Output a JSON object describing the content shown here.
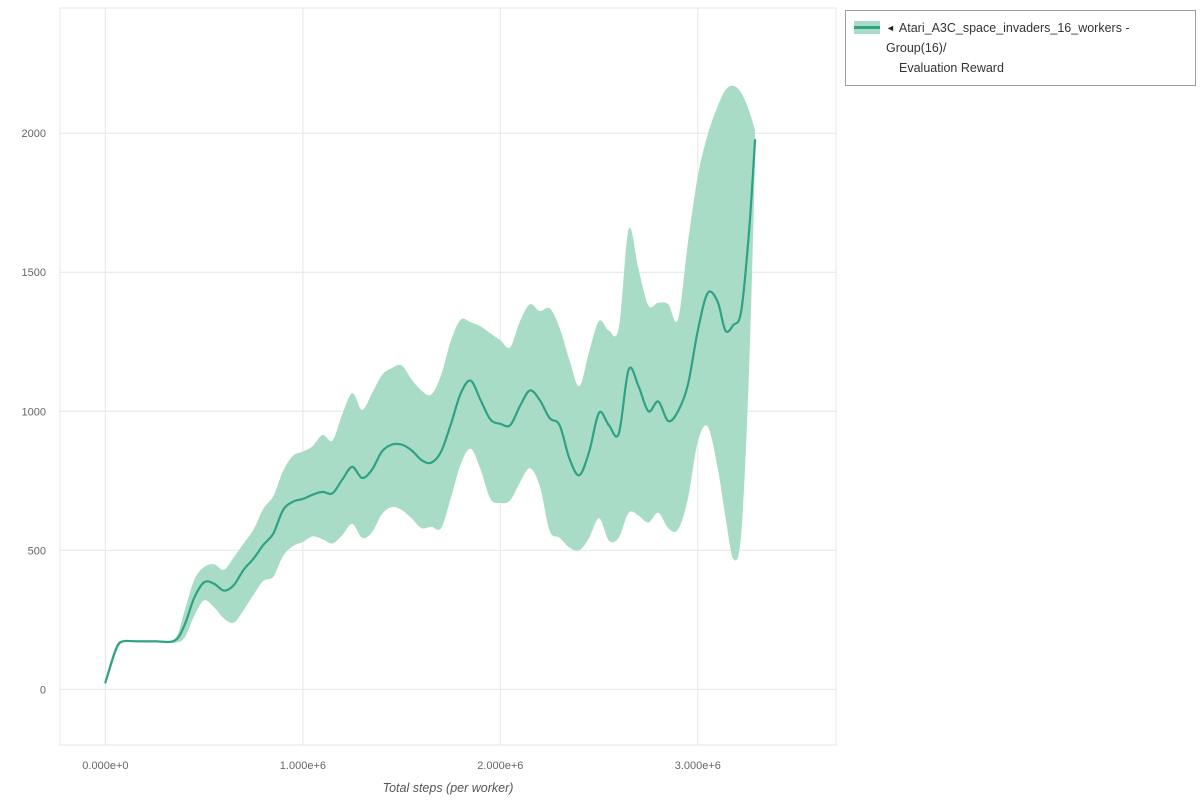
{
  "legend": {
    "marker": "◄",
    "name_line1": "Atari_A3C_space_invaders_16_workers - Group(16)/",
    "name_line2": "Evaluation Reward"
  },
  "chart_data": {
    "type": "line",
    "title": "",
    "xlabel": "Total steps (per worker)",
    "ylabel": "",
    "grid": true,
    "grid_color": "#e4e7e7",
    "tick_color": "#666666",
    "legend_position": "top-right",
    "x_units": "millions of steps",
    "xlim": [
      -0.23,
      3.7
    ],
    "ylim": [
      -200,
      2450
    ],
    "x_ticks": [
      {
        "value": 0,
        "label": "0.000e+0"
      },
      {
        "value": 1,
        "label": "1.000e+6"
      },
      {
        "value": 2,
        "label": "2.000e+6"
      },
      {
        "value": 3,
        "label": "3.000e+6"
      }
    ],
    "y_ticks": [
      {
        "value": 0,
        "label": "0"
      },
      {
        "value": 500,
        "label": "500"
      },
      {
        "value": 1000,
        "label": "1000"
      },
      {
        "value": 1500,
        "label": "1500"
      },
      {
        "value": 2000,
        "label": "2000"
      }
    ],
    "series": [
      {
        "name": "Atari_A3C_space_invaders_16_workers - Group(16)/Evaluation Reward",
        "color": "#2fa184",
        "band_color": "#a9dcc7",
        "band_opacity": 1,
        "x": [
          0.0,
          0.03,
          0.06,
          0.09,
          0.15,
          0.25,
          0.35,
          0.4,
          0.45,
          0.5,
          0.55,
          0.6,
          0.65,
          0.7,
          0.75,
          0.8,
          0.85,
          0.9,
          0.95,
          1.0,
          1.05,
          1.1,
          1.15,
          1.2,
          1.25,
          1.3,
          1.35,
          1.4,
          1.45,
          1.5,
          1.55,
          1.6,
          1.65,
          1.7,
          1.75,
          1.8,
          1.85,
          1.9,
          1.95,
          2.0,
          2.05,
          2.1,
          2.15,
          2.2,
          2.25,
          2.3,
          2.35,
          2.4,
          2.45,
          2.5,
          2.55,
          2.6,
          2.65,
          2.7,
          2.75,
          2.8,
          2.85,
          2.9,
          2.95,
          3.0,
          3.05,
          3.1,
          3.14,
          3.18,
          3.22,
          3.26,
          3.29
        ],
        "mean": [
          25,
          95,
          155,
          173,
          173,
          173,
          175,
          230,
          330,
          385,
          380,
          355,
          375,
          430,
          470,
          520,
          560,
          645,
          675,
          685,
          700,
          710,
          705,
          755,
          800,
          760,
          790,
          855,
          880,
          880,
          860,
          825,
          815,
          855,
          955,
          1065,
          1110,
          1040,
          970,
          955,
          950,
          1020,
          1075,
          1040,
          975,
          950,
          830,
          770,
          855,
          995,
          950,
          920,
          1150,
          1090,
          1000,
          1035,
          965,
          1000,
          1095,
          1290,
          1425,
          1395,
          1290,
          1310,
          1360,
          1650,
          1975
        ],
        "lo": [
          18,
          80,
          145,
          170,
          170,
          170,
          168,
          185,
          265,
          320,
          295,
          255,
          240,
          285,
          340,
          390,
          405,
          480,
          515,
          530,
          550,
          540,
          525,
          555,
          595,
          545,
          565,
          630,
          655,
          645,
          615,
          580,
          585,
          580,
          690,
          810,
          865,
          790,
          685,
          670,
          680,
          745,
          795,
          730,
          570,
          545,
          510,
          500,
          545,
          615,
          535,
          545,
          635,
          625,
          600,
          635,
          580,
          575,
          685,
          890,
          945,
          800,
          620,
          470,
          560,
          1150,
          1900
        ],
        "hi": [
          35,
          110,
          165,
          177,
          177,
          177,
          182,
          280,
          395,
          440,
          450,
          430,
          475,
          525,
          575,
          650,
          695,
          785,
          840,
          855,
          875,
          915,
          895,
          990,
          1065,
          1005,
          1065,
          1130,
          1155,
          1165,
          1115,
          1075,
          1060,
          1130,
          1255,
          1330,
          1320,
          1305,
          1280,
          1255,
          1230,
          1325,
          1385,
          1360,
          1370,
          1300,
          1185,
          1090,
          1215,
          1325,
          1290,
          1300,
          1655,
          1510,
          1380,
          1390,
          1385,
          1330,
          1605,
          1845,
          1995,
          2095,
          2155,
          2170,
          2145,
          2080,
          2010
        ]
      }
    ]
  }
}
